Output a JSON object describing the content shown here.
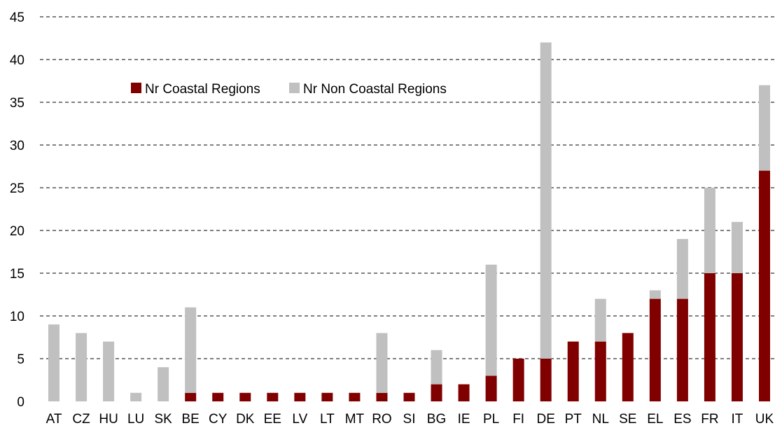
{
  "chart_data": {
    "type": "bar",
    "stacked": true,
    "categories": [
      "AT",
      "CZ",
      "HU",
      "LU",
      "SK",
      "BE",
      "CY",
      "DK",
      "EE",
      "LV",
      "LT",
      "MT",
      "RO",
      "SI",
      "BG",
      "IE",
      "PL",
      "FI",
      "DE",
      "PT",
      "NL",
      "SE",
      "EL",
      "ES",
      "FR",
      "IT",
      "UK"
    ],
    "series": [
      {
        "name": "Nr Coastal Regions",
        "color": "#800000",
        "values": [
          0,
          0,
          0,
          0,
          0,
          1,
          1,
          1,
          1,
          1,
          1,
          1,
          1,
          1,
          2,
          2,
          3,
          5,
          5,
          7,
          7,
          8,
          12,
          12,
          15,
          15,
          27
        ]
      },
      {
        "name": "Nr Non Coastal Regions",
        "color": "#c0c0c0",
        "values": [
          9,
          8,
          7,
          1,
          4,
          10,
          0,
          0,
          0,
          0,
          0,
          0,
          7,
          0,
          4,
          0,
          13,
          0,
          37,
          0,
          5,
          0,
          1,
          7,
          10,
          6,
          10
        ]
      }
    ],
    "ylim": [
      0,
      45
    ],
    "yticks": [
      "0",
      "5",
      "10",
      "15",
      "20",
      "25",
      "30",
      "35",
      "40",
      "45"
    ],
    "grid": true,
    "legend_position": "top-left"
  }
}
